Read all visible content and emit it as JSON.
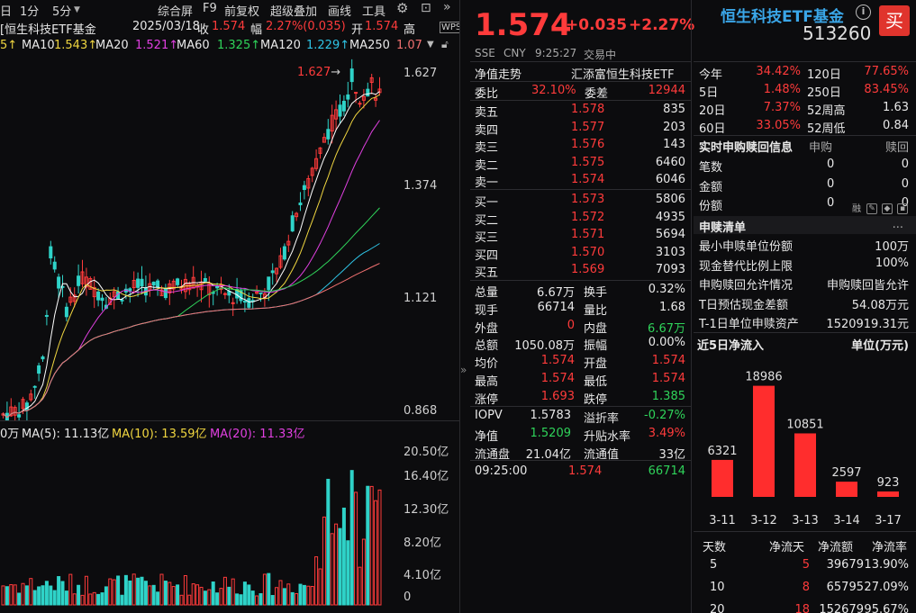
{
  "toolbar": {
    "tab_day": "日",
    "tab_1min": "1分",
    "tab_5min": "5分",
    "btn_overview": "综合屏",
    "btn_f9": "F9",
    "btn_restore": "前复权",
    "btn_overlay": "超级叠加",
    "btn_draw": "画线",
    "btn_tools": "工具"
  },
  "kline_info": {
    "name": "[恒生科技ETF基金",
    "date": "2025/03/18",
    "close_label": "收",
    "close_value": "1.574",
    "change_label": "幅",
    "change_value": "2.27%(0.035)",
    "open_label": "开",
    "open_value": "1.574",
    "high_label": "高"
  },
  "ma_bar": {
    "ma5_tail": "5↑",
    "ma10_label": "MA10",
    "ma10_value": "1.543↑",
    "ma20_label": "MA20",
    "ma20_value": "1.521↑",
    "ma60_label": "MA60",
    "ma60_value": "1.325↑",
    "ma120_label": "MA120",
    "ma120_value": "1.229↑",
    "ma250_label": "MA250",
    "ma250_value": "1.07"
  },
  "price_axis": [
    "1.627",
    "1.374",
    "1.121",
    "0.868"
  ],
  "high_marker": "1.627",
  "vol_bar": {
    "unit": "0万",
    "ma5": "MA(5): 11.13亿",
    "ma10": "MA(10): 13.59亿",
    "ma20": "MA(20): 11.33亿"
  },
  "vol_axis": [
    "20.50亿",
    "16.40亿",
    "12.30亿",
    "8.20亿",
    "4.10亿",
    "0"
  ],
  "quote": {
    "price": "1.574",
    "change": "+0.035",
    "change_pct": "+2.27%",
    "exchange": "SSE",
    "currency": "CNY",
    "time": "9:25:27",
    "status": "交易中",
    "nav_label": "净值走势",
    "company": "汇添富恒生科技ETF",
    "wb_label": "委比",
    "wb_value": "32.10%",
    "wc_label": "委差",
    "wc_value": "12944",
    "asks": [
      {
        "label": "卖五",
        "price": "1.578",
        "vol": "835"
      },
      {
        "label": "卖四",
        "price": "1.577",
        "vol": "203"
      },
      {
        "label": "卖三",
        "price": "1.576",
        "vol": "143"
      },
      {
        "label": "卖二",
        "price": "1.575",
        "vol": "6460"
      },
      {
        "label": "卖一",
        "price": "1.574",
        "vol": "6046"
      }
    ],
    "bids": [
      {
        "label": "买一",
        "price": "1.573",
        "vol": "5806"
      },
      {
        "label": "买二",
        "price": "1.572",
        "vol": "4935"
      },
      {
        "label": "买三",
        "price": "1.571",
        "vol": "5694"
      },
      {
        "label": "买四",
        "price": "1.570",
        "vol": "3103"
      },
      {
        "label": "买五",
        "price": "1.569",
        "vol": "7093"
      }
    ],
    "stats": [
      {
        "l1": "总量",
        "v1": "6.67万",
        "l2": "换手",
        "v2": "0.32%"
      },
      {
        "l1": "现手",
        "v1": "66714",
        "l2": "量比",
        "v2": "1.68"
      },
      {
        "l1": "外盘",
        "v1": "0",
        "l2": "内盘",
        "v2": "6.67万"
      },
      {
        "l1": "总额",
        "v1": "1050.08万",
        "l2": "振幅",
        "v2": "0.00%"
      },
      {
        "l1": "均价",
        "v1": "1.574",
        "l2": "开盘",
        "v2": "1.574"
      },
      {
        "l1": "最高",
        "v1": "1.574",
        "l2": "最低",
        "v2": "1.574"
      },
      {
        "l1": "涨停",
        "v1": "1.693",
        "l2": "跌停",
        "v2": "1.385"
      }
    ],
    "etf_stats": [
      {
        "l1": "IOPV",
        "v1": "1.5783",
        "l2": "溢折率",
        "v2": "-0.27%"
      },
      {
        "l1": "净值",
        "v1": "1.5209",
        "l2": "升贴水率",
        "v2": "3.49%"
      },
      {
        "l1": "流通盘",
        "v1": "21.04亿",
        "l2": "流通值",
        "v2": "33亿"
      }
    ],
    "tick": {
      "time": "09:25:00",
      "price": "1.574",
      "vol": "66714"
    }
  },
  "right": {
    "fund_name": "恒生科技ETF基金",
    "fund_code": "513260",
    "info_icon": "i",
    "buy_label": "买",
    "periods": [
      {
        "l1": "今年",
        "v1": "34.42%",
        "l2": "120日",
        "v2": "77.65%"
      },
      {
        "l1": "5日",
        "v1": "1.48%",
        "l2": "250日",
        "v2": "83.45%"
      },
      {
        "l1": "20日",
        "v1": "7.37%",
        "l2": "52周高",
        "v2": "1.63"
      },
      {
        "l1": "60日",
        "v1": "33.05%",
        "l2": "52周低",
        "v2": "0.84"
      }
    ],
    "realtime_title": "实时申购赎回信息",
    "col_subscribe": "申购",
    "col_redeem": "赎回",
    "realtime_icon_text": "融",
    "realtime_rows": [
      {
        "label": "笔数",
        "sub": "0",
        "red": "0"
      },
      {
        "label": "金额",
        "sub": "0",
        "red": "0"
      },
      {
        "label": "份额",
        "sub": "0",
        "red": "0"
      }
    ],
    "list_title": "申赎清单",
    "list_more": "...",
    "list_rows": [
      {
        "label": "最小申赎单位份额",
        "value": "100万"
      },
      {
        "label": "现金替代比例上限",
        "value": "100%"
      },
      {
        "label": "申购赎回允许情况",
        "value": "申购赎回皆允许"
      },
      {
        "label": "T日预估现金差额",
        "value": "54.08万元"
      },
      {
        "label": "T-1日单位申赎资产",
        "value": "1520919.31元"
      }
    ],
    "flow_title": "近5日净流入",
    "flow_unit": "单位(万元)",
    "flow_table_headers": [
      "天数",
      "净流天",
      "净流额",
      "净流率"
    ],
    "flow_table_rows": [
      {
        "days": "5",
        "netdays": "5",
        "amount": "39679",
        "rate": "13.90%"
      },
      {
        "days": "10",
        "netdays": "8",
        "amount": "65795",
        "rate": "27.09%"
      },
      {
        "days": "20",
        "netdays": "18",
        "amount": "152679",
        "rate": "95.67%"
      }
    ]
  },
  "chart_data": {
    "type": "bar",
    "title": "近5日净流入",
    "ylabel": "单位(万元)",
    "categories": [
      "3-11",
      "3-12",
      "3-13",
      "3-14",
      "3-17"
    ],
    "values": [
      6321,
      18986,
      10851,
      2597,
      923
    ],
    "value_labels": [
      "6321",
      "18986",
      "10851",
      "2597",
      "923"
    ],
    "ylim": [
      0,
      20000
    ],
    "color": "#ff2d2d"
  }
}
